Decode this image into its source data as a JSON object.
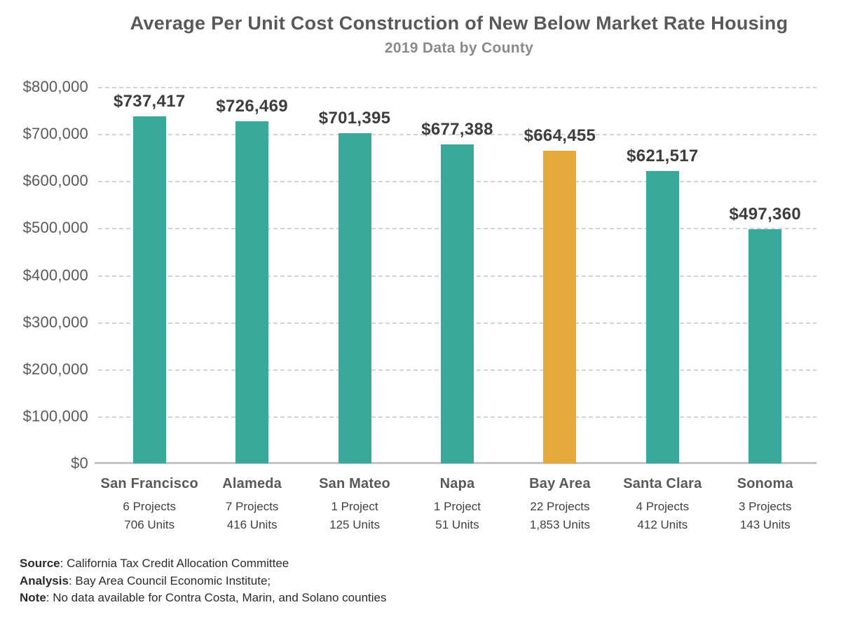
{
  "header": {
    "title": "Average Per Unit Cost Construction of New Below Market Rate Housing",
    "subtitle": "2019 Data by County"
  },
  "chart_data": {
    "type": "bar",
    "title": "Average Per Unit Cost Construction of New Below Market Rate Housing",
    "subtitle": "2019 Data by County",
    "categories": [
      "San Francisco",
      "Alameda",
      "San Mateo",
      "Napa",
      "Bay Area",
      "Santa Clara",
      "Sonoma"
    ],
    "values": [
      737417,
      726469,
      701395,
      677388,
      664455,
      621517,
      497360
    ],
    "value_labels": [
      "$737,417",
      "$726,469",
      "$701,395",
      "$677,388",
      "$664,455",
      "$621,517",
      "$497,360"
    ],
    "category_sublines": [
      [
        "6 Projects",
        "706 Units"
      ],
      [
        "7 Projects",
        "416 Units"
      ],
      [
        "1 Project",
        "125 Units"
      ],
      [
        "1 Project",
        "51 Units"
      ],
      [
        "22 Projects",
        "1,853 Units"
      ],
      [
        "4 Projects",
        "412 Units"
      ],
      [
        "3 Projects",
        "143 Units"
      ]
    ],
    "highlight_index": 4,
    "colors": {
      "bar_default": "#38a99b",
      "bar_highlight": "#e6a93c"
    },
    "ylim": [
      0,
      800000
    ],
    "ytick_step": 100000,
    "ytick_labels_desc": [
      "$800,000",
      "$700,000",
      "$600,000",
      "$500,000",
      "$400,000",
      "$300,000",
      "$200,000",
      "$100,000",
      "$0"
    ],
    "xlabel": "",
    "ylabel": "",
    "grid": "horizontal-dashed",
    "legend": "none"
  },
  "footer": {
    "lines": [
      {
        "label": "Source",
        "text": ": California Tax Credit Allocation Committee"
      },
      {
        "label": "Analysis",
        "text": ": Bay Area Council Economic Institute;"
      },
      {
        "label": "Note",
        "text": ": No data available for Contra Costa, Marin, and Solano counties"
      }
    ]
  }
}
